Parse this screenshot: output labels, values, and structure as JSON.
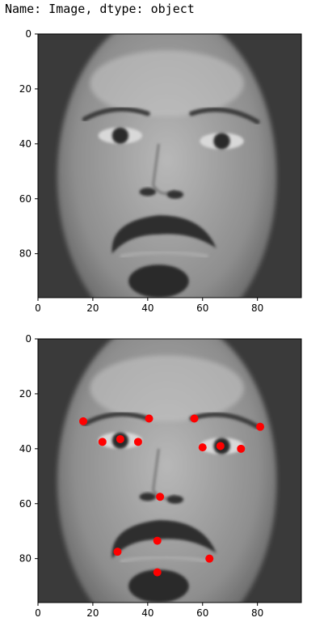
{
  "output_header": "Name: Image, dtype: object",
  "chart_data": [
    {
      "type": "scatter",
      "image": "grayscale face photo",
      "xlim": [
        0,
        96
      ],
      "ylim": [
        96,
        0
      ],
      "xticks": [
        0,
        20,
        40,
        60,
        80
      ],
      "yticks": [
        0,
        20,
        40,
        60,
        80
      ],
      "points": []
    },
    {
      "type": "scatter",
      "image": "grayscale face photo",
      "xlim": [
        0,
        96
      ],
      "ylim": [
        96,
        0
      ],
      "xticks": [
        0,
        20,
        40,
        60,
        80
      ],
      "yticks": [
        0,
        20,
        40,
        60,
        80
      ],
      "marker_color": "#ff0000",
      "points": [
        {
          "x": 16.5,
          "y": 30
        },
        {
          "x": 23.5,
          "y": 37.5
        },
        {
          "x": 30,
          "y": 36.5
        },
        {
          "x": 36.5,
          "y": 37.5
        },
        {
          "x": 40.5,
          "y": 29
        },
        {
          "x": 57,
          "y": 29
        },
        {
          "x": 60,
          "y": 39.5
        },
        {
          "x": 66.5,
          "y": 39
        },
        {
          "x": 74,
          "y": 40
        },
        {
          "x": 81,
          "y": 32
        },
        {
          "x": 44.5,
          "y": 57.5
        },
        {
          "x": 43.5,
          "y": 73.5
        },
        {
          "x": 29,
          "y": 77.5
        },
        {
          "x": 62.5,
          "y": 80
        },
        {
          "x": 43.5,
          "y": 85
        }
      ]
    }
  ]
}
